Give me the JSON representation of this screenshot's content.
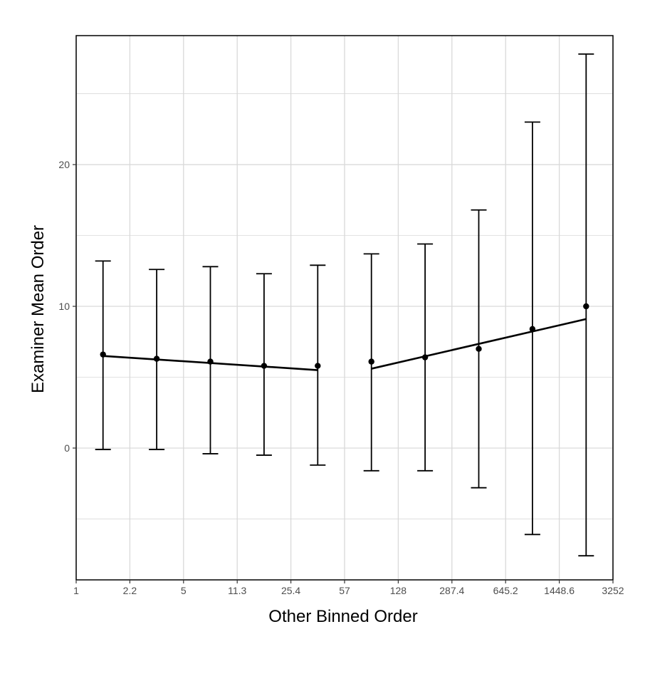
{
  "chart_data": {
    "type": "scatter",
    "title": "",
    "xlabel": "Other Binned Order",
    "ylabel": "Examiner Mean Order",
    "x_ticks": [
      "1",
      "2.2",
      "5",
      "11.3",
      "25.4",
      "57",
      "128",
      "287.4",
      "645.2",
      "1448.6",
      "3252"
    ],
    "y_ticks": [
      0,
      10,
      20
    ],
    "ylim": [
      -9.3,
      29.1
    ],
    "grid": true,
    "legend": "none",
    "points": [
      {
        "bin": 0.5,
        "mean": 6.6,
        "lower": -0.1,
        "upper": 13.2
      },
      {
        "bin": 1.5,
        "mean": 6.3,
        "lower": -0.1,
        "upper": 12.6
      },
      {
        "bin": 2.5,
        "mean": 6.1,
        "lower": -0.4,
        "upper": 12.8
      },
      {
        "bin": 3.5,
        "mean": 5.8,
        "lower": -0.5,
        "upper": 12.3
      },
      {
        "bin": 4.5,
        "mean": 5.8,
        "lower": -1.2,
        "upper": 12.9
      },
      {
        "bin": 5.5,
        "mean": 6.1,
        "lower": -1.6,
        "upper": 13.7
      },
      {
        "bin": 6.5,
        "mean": 6.4,
        "lower": -1.6,
        "upper": 14.4
      },
      {
        "bin": 7.5,
        "mean": 7.0,
        "lower": -2.8,
        "upper": 16.8
      },
      {
        "bin": 8.5,
        "mean": 8.4,
        "lower": -6.1,
        "upper": 23.0
      },
      {
        "bin": 9.5,
        "mean": 10.0,
        "lower": -7.6,
        "upper": 27.8
      }
    ],
    "fit_lines": [
      {
        "x": [
          0.5,
          4.5
        ],
        "y": [
          6.5,
          5.5
        ]
      },
      {
        "x": [
          5.5,
          9.5
        ],
        "y": [
          5.6,
          9.1
        ]
      }
    ],
    "colors": {
      "marks": "#000000",
      "grid": "#d9d9d9",
      "panel_border": "#000000",
      "tick_text": "#4d4d4d"
    }
  }
}
